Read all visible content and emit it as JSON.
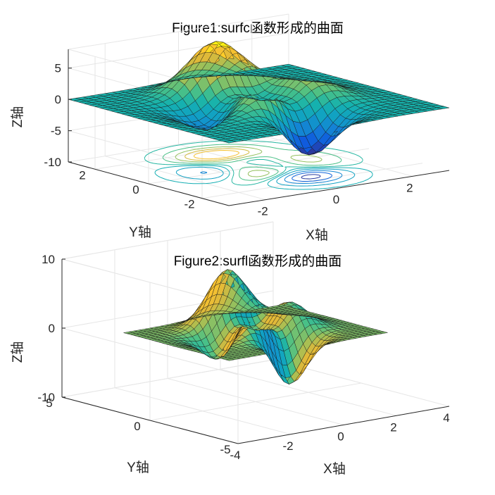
{
  "chart_data": [
    {
      "type": "surface",
      "function": "surfc",
      "title": "Figure1:surfc函数形成的曲面",
      "xlabel": "X轴",
      "ylabel": "Y轴",
      "zlabel": "Z轴",
      "xlim": [
        -3,
        3
      ],
      "ylim": [
        -3,
        3
      ],
      "zlim": [
        -10,
        8
      ],
      "xticks": [
        -2,
        0,
        2
      ],
      "yticks": [
        -2,
        0,
        2
      ],
      "zticks": [
        -10,
        -5,
        0,
        5
      ],
      "xtick_labels": [
        "-2",
        "0",
        "2"
      ],
      "ytick_labels": [
        "-2",
        "0",
        "2"
      ],
      "ztick_labels": [
        "-10",
        "-5",
        "0",
        "5"
      ],
      "grid": true,
      "contour_below": true,
      "colormap": "parula"
    },
    {
      "type": "surface",
      "function": "surfl",
      "title": "Figure2:surfl函数形成的曲面",
      "xlabel": "X轴",
      "ylabel": "Y轴",
      "zlabel": "Z轴",
      "xlim": [
        -4,
        4
      ],
      "ylim": [
        -5,
        5
      ],
      "zlim": [
        -10,
        10
      ],
      "xticks": [
        -4,
        -2,
        0,
        2,
        4
      ],
      "yticks": [
        -5,
        0,
        5
      ],
      "zticks": [
        -10,
        0,
        10
      ],
      "xtick_labels": [
        "-4",
        "-2",
        "0",
        "2",
        "4"
      ],
      "ytick_labels": [
        "-5",
        "0",
        "5"
      ],
      "ztick_labels": [
        "-10",
        "0",
        "10"
      ],
      "grid": true,
      "lighting": true,
      "colormap": "parula"
    }
  ]
}
